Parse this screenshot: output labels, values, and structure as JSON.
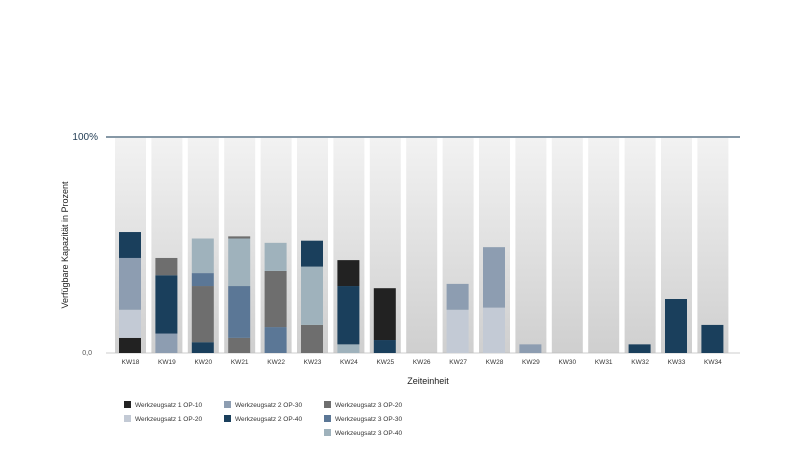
{
  "chart_data": {
    "type": "bar",
    "stacked": true,
    "ylabel": "Verfügbare Kapazität in Prozent",
    "xlabel": "Zeiteinheit",
    "y_top_label": "100%",
    "y_zero_label": "0,0",
    "ylim": [
      0,
      100
    ],
    "legend_position": "bottom-left",
    "categories": [
      "KW18",
      "KW19",
      "KW20",
      "KW21",
      "KW22",
      "KW23",
      "KW24",
      "KW25",
      "KW26",
      "KW27",
      "KW28",
      "KW29",
      "KW30",
      "KW31",
      "KW32",
      "KW33",
      "KW34"
    ],
    "series": [
      {
        "name": "Werkzeugsatz 1 OP-10",
        "color": "#222222",
        "values": [
          7,
          0,
          0,
          0,
          0,
          0,
          12,
          24,
          0,
          0,
          0,
          0,
          0,
          0,
          0,
          0,
          0
        ]
      },
      {
        "name": "Werkzeugsatz 1 OP-20",
        "color": "#c3cad5",
        "values": [
          13,
          0,
          0,
          0,
          0,
          0,
          0,
          0,
          0,
          20,
          21,
          0,
          0,
          0,
          0,
          0,
          0
        ]
      },
      {
        "name": "Werkzeugsatz 2 OP-30",
        "color": "#8d9db1",
        "values": [
          24,
          9,
          0,
          0,
          0,
          0,
          0,
          0,
          0,
          12,
          28,
          4,
          0,
          0,
          0,
          0,
          0
        ]
      },
      {
        "name": "Werkzeugsatz 2 OP-40",
        "color": "#1a3f5c",
        "values": [
          12,
          27,
          5,
          0,
          0,
          12,
          27,
          6,
          0,
          0,
          0,
          0,
          0,
          0,
          4,
          25,
          13
        ]
      },
      {
        "name": "Werkzeugsatz 3 OP-20",
        "color": "#6e6e6e",
        "values": [
          0,
          8,
          26,
          8,
          26,
          13,
          0,
          0,
          0,
          0,
          0,
          0,
          0,
          0,
          0,
          0,
          0
        ]
      },
      {
        "name": "Werkzeugsatz 3 OP-30",
        "color": "#5b7796",
        "values": [
          0,
          0,
          6,
          24,
          12,
          0,
          0,
          0,
          0,
          0,
          0,
          0,
          0,
          0,
          0,
          0,
          0
        ]
      },
      {
        "name": "Werkzeugsatz 3 OP-40",
        "color": "#9fb2bc",
        "values": [
          0,
          0,
          16,
          22,
          13,
          27,
          4,
          0,
          0,
          0,
          0,
          0,
          0,
          0,
          0,
          0,
          0
        ]
      }
    ],
    "segment_order": [
      [
        "Werkzeugsatz 1 OP-10",
        "Werkzeugsatz 1 OP-20",
        "Werkzeugsatz 2 OP-30",
        "Werkzeugsatz 2 OP-40"
      ],
      [
        "Werkzeugsatz 2 OP-30",
        "Werkzeugsatz 2 OP-40",
        "Werkzeugsatz 3 OP-20"
      ],
      [
        "Werkzeugsatz 2 OP-40",
        "Werkzeugsatz 3 OP-20",
        "Werkzeugsatz 3 OP-30",
        "Werkzeugsatz 3 OP-40"
      ],
      [
        "Werkzeugsatz 3 OP-20",
        "Werkzeugsatz 3 OP-30",
        "Werkzeugsatz 3 OP-40",
        "Werkzeugsatz 3 OP-20"
      ],
      [
        "Werkzeugsatz 3 OP-30",
        "Werkzeugsatz 3 OP-20",
        "Werkzeugsatz 3 OP-40"
      ],
      [
        "Werkzeugsatz 3 OP-20",
        "Werkzeugsatz 3 OP-40",
        "Werkzeugsatz 2 OP-40"
      ],
      [
        "Werkzeugsatz 3 OP-40",
        "Werkzeugsatz 2 OP-40",
        "Werkzeugsatz 1 OP-10"
      ],
      [
        "Werkzeugsatz 2 OP-40",
        "Werkzeugsatz 1 OP-10"
      ],
      [],
      [
        "Werkzeugsatz 1 OP-20",
        "Werkzeugsatz 2 OP-30"
      ],
      [
        "Werkzeugsatz 1 OP-20",
        "Werkzeugsatz 2 OP-30"
      ],
      [
        "Werkzeugsatz 2 OP-30"
      ],
      [],
      [],
      [
        "Werkzeugsatz 2 OP-40"
      ],
      [
        "Werkzeugsatz 2 OP-40"
      ],
      [
        "Werkzeugsatz 2 OP-40"
      ]
    ],
    "split_values": {
      "KW21": {
        "Werkzeugsatz 3 OP-20": [
          7,
          1
        ]
      }
    }
  }
}
